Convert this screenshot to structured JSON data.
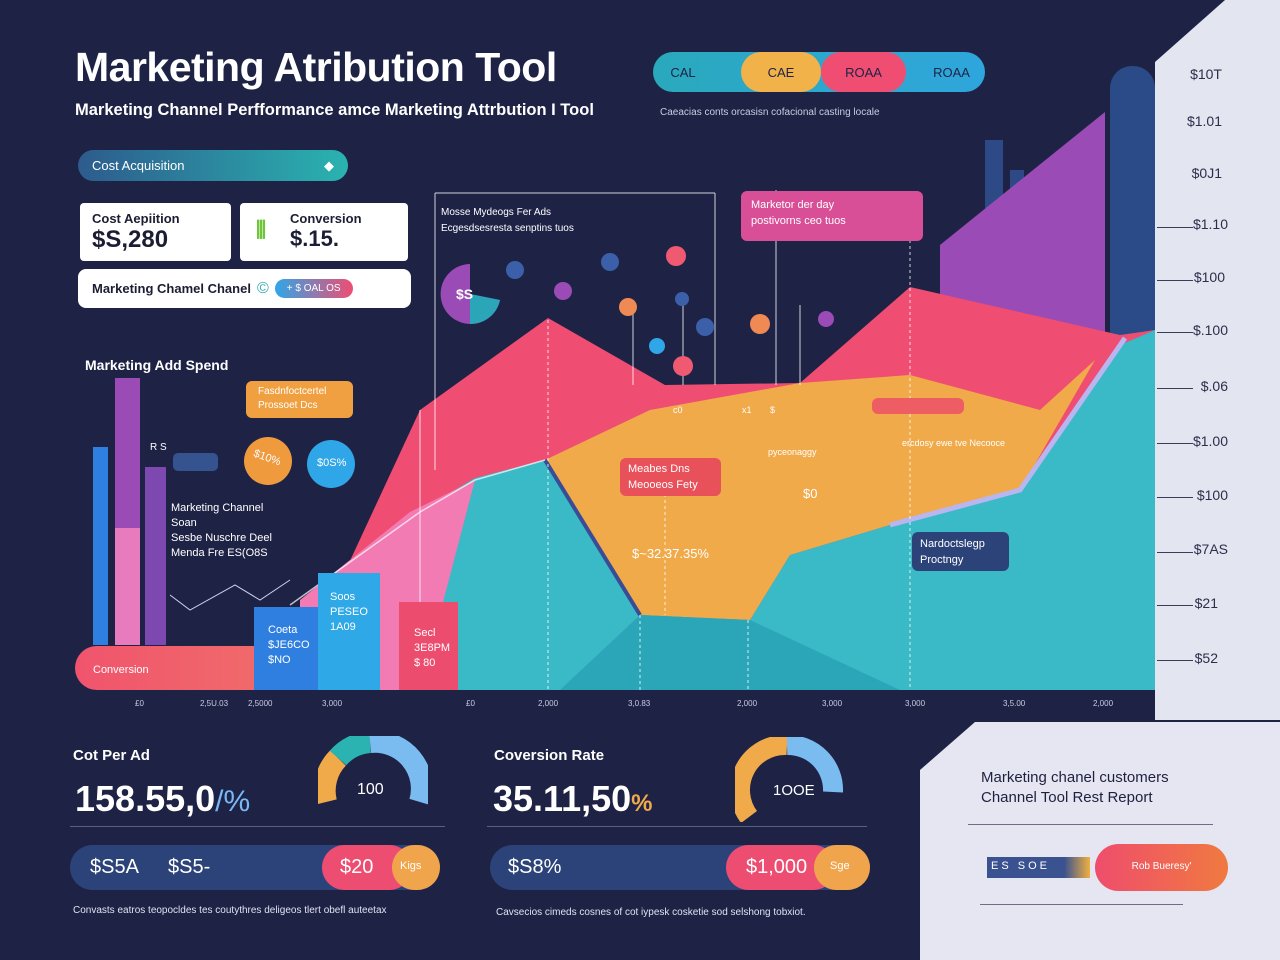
{
  "header": {
    "title": "Marketing Atribution Tool",
    "subtitle": "Marketing Channel Perfformance amce Marketing Attrbution I Tool",
    "note": "Caeacias conts orcasisn cofacional casting locale"
  },
  "metric_pills": [
    "CAL",
    "CAE",
    "ROAA",
    "ROAA"
  ],
  "filter": {
    "label": "Cost Acquisition",
    "icon": "chevron-icon"
  },
  "cards": [
    {
      "label": "Cost Aepiition",
      "value": "$S,280"
    },
    {
      "label": "Conversion",
      "value": "$.15."
    }
  ],
  "channel_row": {
    "label": "Marketing Chamel Chanel",
    "badge": "+ $ OAL OS"
  },
  "ad_spend": {
    "title": "Marketing Add Spend",
    "side_label": "R S",
    "channel_text": [
      "Marketing Channel",
      "Soan",
      "Sesbe Nuschre Deel",
      "Menda Fre ES(O8S"
    ]
  },
  "annotations": {
    "info_box": [
      "Mosse Mydeogs Fer Ads",
      "Ecgesdsesresta senptins tuos"
    ],
    "pink_box": [
      "Marketor der day",
      "postivorns ceo tuos"
    ],
    "orange_box": [
      "Fasdnfoctcertel",
      "Prossoet Dcs"
    ],
    "red_box": [
      "Meabes Dns",
      "Meooeos Fety"
    ],
    "navy_box": [
      "Nardoctslegp",
      "Proctngy"
    ],
    "bubble_s": "$S",
    "bubble_orange": "$10%",
    "bubble_blue": "$0S%",
    "pct": "$~32.37.35%",
    "s0": "$0",
    "c0": "c0",
    "x1": "x1",
    "s": "$",
    "ridge_note": "ercdosy ewe tve Necooce",
    "arrow_note": "pyceonaggy"
  },
  "bars": {
    "conversion": "Conversion",
    "blue": [
      "Coeta",
      "$JE6CO",
      "$NO"
    ],
    "cyan": [
      "Soos",
      "PESEO",
      "1A09"
    ],
    "red": [
      "Secl",
      "3E8PM",
      "$ 80"
    ]
  },
  "chart": {
    "right_axis": [
      "$10T",
      "$1.01",
      "$0J1",
      "$1.10",
      "$100",
      "$.100",
      "$.06",
      "$1.00",
      "$100",
      "$7AS",
      "$21",
      "$52"
    ],
    "x_ticks": [
      "£0",
      "2,5U.03",
      "2,5000",
      "3,000",
      "£0",
      "2,000",
      "3,0.83",
      "2,000",
      "3,000",
      "3,000",
      "3,5.00",
      "2,000"
    ]
  },
  "cost_per_ad": {
    "label": "Cot Per Ad",
    "value": "158.55,0",
    "suffix": "/%",
    "gauge": "100",
    "bar": [
      "$S5A",
      "$S5-",
      "$20",
      "Kigs"
    ],
    "note": "Convasts eatros teopocldes tes coutythres deligeos tlert obefl auteetax"
  },
  "conversion_rate": {
    "label": "Coversion Rate",
    "value": "35.11,50",
    "suffix": "%",
    "gauge": "1OOE",
    "bar": [
      "$S8%",
      "$1,000",
      "Sge"
    ],
    "note": "Cavsecios cimeds cosnes of cot iypesk cosketie sod selshong tobxiot."
  },
  "report": {
    "title": "Marketing chanel customers Channel Tool Rest Report",
    "chips": "ES SOE",
    "button": "Rob Bueresy'"
  }
}
